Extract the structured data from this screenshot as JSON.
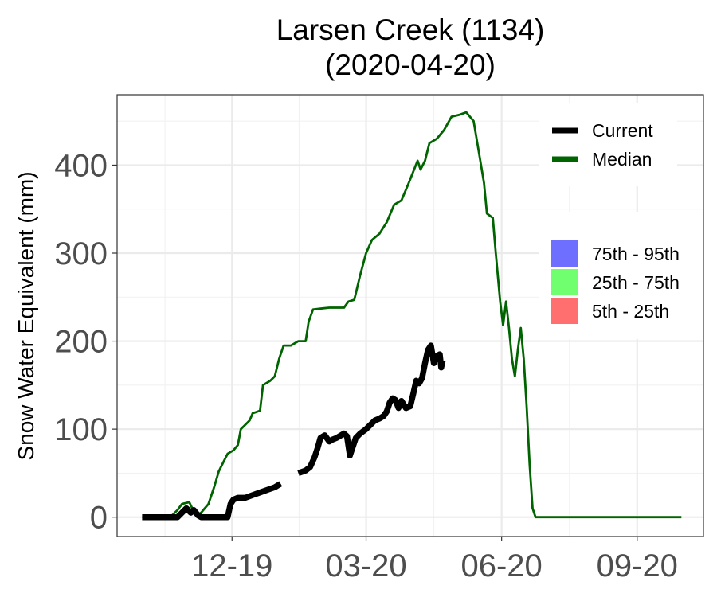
{
  "chart_data": {
    "type": "line",
    "title": "Larsen Creek (1134)",
    "subtitle": "(2020-04-20)",
    "xlabel": "",
    "ylabel": "Snow Water Equivalent (mm)",
    "ylim": [
      -22,
      480
    ],
    "xlim": [
      "2019-09-14",
      "2020-10-16"
    ],
    "grid": true,
    "x_ticks": [
      {
        "date": "2019-12-01",
        "label": "12-19"
      },
      {
        "date": "2020-03-01",
        "label": "03-20"
      },
      {
        "date": "2020-06-01",
        "label": "06-20"
      },
      {
        "date": "2020-09-01",
        "label": "09-20"
      }
    ],
    "y_ticks": [
      0,
      100,
      200,
      300,
      400
    ],
    "legend_position": "right",
    "legend_lines": [
      {
        "label": "Current",
        "color": "#000000"
      },
      {
        "label": "Median",
        "color": "#006400"
      }
    ],
    "legend_bands": [
      {
        "label": "75th - 95th",
        "color": "#6f6fff"
      },
      {
        "label": "25th - 75th",
        "color": "#6fff6f"
      },
      {
        "label": "5th - 25th",
        "color": "#ff6f6f"
      }
    ],
    "series": [
      {
        "name": "Current",
        "color": "#000000",
        "segments": [
          [
            [
              "2019-10-01",
              0
            ],
            [
              "2019-10-25",
              0
            ],
            [
              "2019-10-28",
              5
            ],
            [
              "2019-10-31",
              10
            ],
            [
              "2019-11-03",
              5
            ],
            [
              "2019-11-05",
              8
            ],
            [
              "2019-11-08",
              2
            ],
            [
              "2019-11-10",
              0
            ],
            [
              "2019-11-28",
              0
            ],
            [
              "2019-11-30",
              15
            ],
            [
              "2019-12-02",
              20
            ],
            [
              "2019-12-05",
              22
            ],
            [
              "2019-12-10",
              22
            ],
            [
              "2019-12-15",
              25
            ],
            [
              "2019-12-20",
              28
            ],
            [
              "2019-12-25",
              31
            ],
            [
              "2019-12-30",
              34
            ],
            [
              "2020-01-01",
              36
            ],
            [
              "2020-01-03",
              38
            ]
          ],
          [
            [
              "2020-01-15",
              50
            ],
            [
              "2020-01-20",
              53
            ],
            [
              "2020-01-23",
              57
            ],
            [
              "2020-01-26",
              68
            ],
            [
              "2020-01-28",
              78
            ],
            [
              "2020-01-30",
              90
            ],
            [
              "2020-02-02",
              93
            ],
            [
              "2020-02-05",
              86
            ],
            [
              "2020-02-07",
              88
            ],
            [
              "2020-02-10",
              90
            ],
            [
              "2020-02-12",
              92
            ],
            [
              "2020-02-15",
              95
            ],
            [
              "2020-02-17",
              92
            ],
            [
              "2020-02-19",
              70
            ],
            [
              "2020-02-21",
              80
            ],
            [
              "2020-02-23",
              90
            ],
            [
              "2020-02-26",
              95
            ],
            [
              "2020-03-01",
              100
            ],
            [
              "2020-03-04",
              105
            ],
            [
              "2020-03-07",
              110
            ],
            [
              "2020-03-10",
              112
            ],
            [
              "2020-03-13",
              115
            ],
            [
              "2020-03-15",
              120
            ],
            [
              "2020-03-17",
              130
            ],
            [
              "2020-03-19",
              135
            ],
            [
              "2020-03-21",
              133
            ],
            [
              "2020-03-23",
              124
            ],
            [
              "2020-03-25",
              132
            ],
            [
              "2020-03-28",
              124
            ],
            [
              "2020-03-31",
              126
            ],
            [
              "2020-04-02",
              140
            ],
            [
              "2020-04-04",
              155
            ],
            [
              "2020-04-06",
              152
            ],
            [
              "2020-04-08",
              158
            ],
            [
              "2020-04-10",
              175
            ],
            [
              "2020-04-12",
              190
            ],
            [
              "2020-04-14",
              195
            ],
            [
              "2020-04-16",
              175
            ],
            [
              "2020-04-18",
              183
            ],
            [
              "2020-04-20",
              185
            ],
            [
              "2020-04-21",
              170
            ],
            [
              "2020-04-22",
              178
            ]
          ]
        ]
      },
      {
        "name": "Median",
        "color": "#006400",
        "points": [
          [
            "2019-10-01",
            0
          ],
          [
            "2019-10-20",
            0
          ],
          [
            "2019-10-25",
            8
          ],
          [
            "2019-10-28",
            15
          ],
          [
            "2019-11-02",
            17
          ],
          [
            "2019-11-04",
            10
          ],
          [
            "2019-11-07",
            2
          ],
          [
            "2019-11-10",
            5
          ],
          [
            "2019-11-15",
            15
          ],
          [
            "2019-11-19",
            35
          ],
          [
            "2019-11-22",
            52
          ],
          [
            "2019-11-25",
            62
          ],
          [
            "2019-11-28",
            72
          ],
          [
            "2019-12-02",
            76
          ],
          [
            "2019-12-05",
            82
          ],
          [
            "2019-12-07",
            100
          ],
          [
            "2019-12-10",
            105
          ],
          [
            "2019-12-13",
            110
          ],
          [
            "2019-12-15",
            118
          ],
          [
            "2019-12-20",
            121
          ],
          [
            "2019-12-22",
            150
          ],
          [
            "2019-12-27",
            155
          ],
          [
            "2019-12-30",
            160
          ],
          [
            "2020-01-02",
            180
          ],
          [
            "2020-01-05",
            195
          ],
          [
            "2020-01-10",
            195
          ],
          [
            "2020-01-15",
            200
          ],
          [
            "2020-01-20",
            200
          ],
          [
            "2020-01-22",
            222
          ],
          [
            "2020-01-25",
            236
          ],
          [
            "2020-01-30",
            237
          ],
          [
            "2020-02-05",
            238
          ],
          [
            "2020-02-15",
            238
          ],
          [
            "2020-02-18",
            245
          ],
          [
            "2020-02-22",
            247
          ],
          [
            "2020-02-26",
            275
          ],
          [
            "2020-03-01",
            300
          ],
          [
            "2020-03-05",
            315
          ],
          [
            "2020-03-10",
            322
          ],
          [
            "2020-03-15",
            335
          ],
          [
            "2020-03-20",
            355
          ],
          [
            "2020-03-25",
            360
          ],
          [
            "2020-03-30",
            380
          ],
          [
            "2020-04-05",
            405
          ],
          [
            "2020-04-07",
            395
          ],
          [
            "2020-04-10",
            405
          ],
          [
            "2020-04-13",
            425
          ],
          [
            "2020-04-18",
            430
          ],
          [
            "2020-04-23",
            440
          ],
          [
            "2020-04-28",
            455
          ],
          [
            "2020-05-03",
            457
          ],
          [
            "2020-05-08",
            460
          ],
          [
            "2020-05-13",
            450
          ],
          [
            "2020-05-16",
            420
          ],
          [
            "2020-05-20",
            380
          ],
          [
            "2020-05-22",
            345
          ],
          [
            "2020-05-26",
            340
          ],
          [
            "2020-05-28",
            300
          ],
          [
            "2020-05-31",
            245
          ],
          [
            "2020-06-02",
            218
          ],
          [
            "2020-06-04",
            245
          ],
          [
            "2020-06-06",
            215
          ],
          [
            "2020-06-08",
            180
          ],
          [
            "2020-06-10",
            160
          ],
          [
            "2020-06-12",
            190
          ],
          [
            "2020-06-14",
            215
          ],
          [
            "2020-06-16",
            180
          ],
          [
            "2020-06-18",
            125
          ],
          [
            "2020-06-20",
            60
          ],
          [
            "2020-06-22",
            10
          ],
          [
            "2020-06-24",
            0
          ],
          [
            "2020-10-01",
            0
          ]
        ]
      }
    ]
  }
}
